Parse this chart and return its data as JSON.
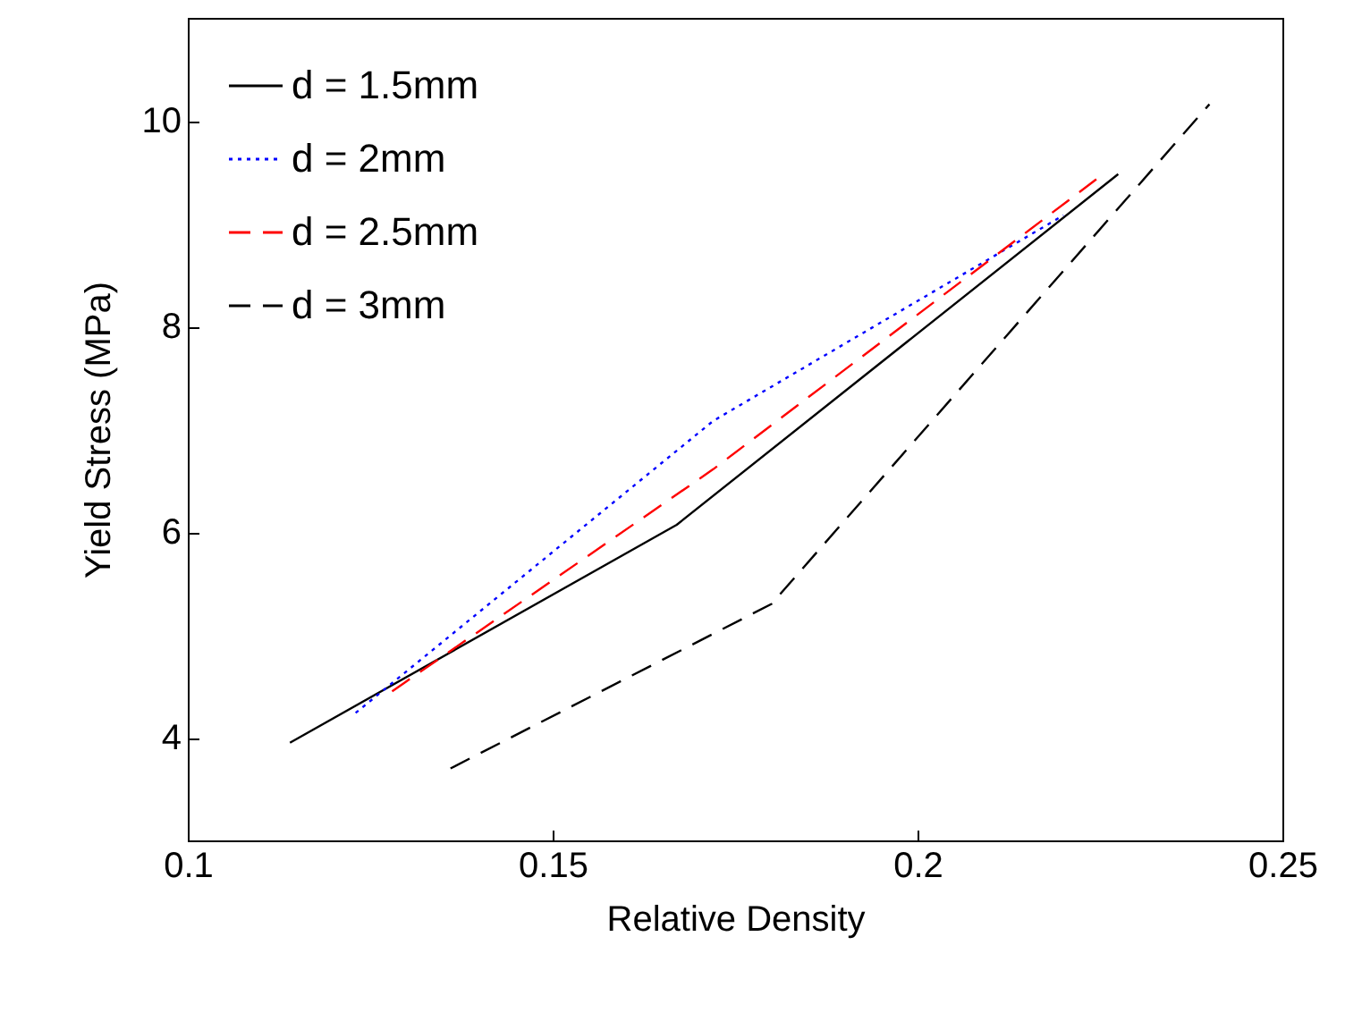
{
  "chart_data": {
    "type": "line",
    "xlabel": "Relative Density",
    "ylabel": "Yield Stress (MPa)",
    "xlim": [
      0.1,
      0.25
    ],
    "xticks": [
      0.1,
      0.15,
      0.2,
      0.25
    ],
    "ylim": [
      3,
      11
    ],
    "yticks": [
      4,
      6,
      8,
      10
    ],
    "grid": false,
    "legend": "top left",
    "marker": "none",
    "series": [
      {
        "name": "d = 1.5mm",
        "color": "#000000",
        "line_style": "solid",
        "x": [
          0.114,
          0.167,
          0.2275
        ],
        "values": [
          3.95,
          6.07,
          9.48
        ]
      },
      {
        "name": "d = 2mm",
        "color": "#0000ff",
        "line_style": "dotted",
        "x": [
          0.123,
          0.172,
          0.22
        ],
        "values": [
          4.24,
          7.08,
          9.08
        ]
      },
      {
        "name": "d = 2.5mm",
        "color": "#ff0000",
        "line_style": "dashed",
        "x": [
          0.128,
          0.172,
          0.2245
        ],
        "values": [
          4.45,
          6.61,
          9.43
        ]
      },
      {
        "name": "d = 3mm",
        "color": "#000000",
        "line_style": "dashed",
        "x": [
          0.136,
          0.18,
          0.24
        ],
        "values": [
          3.7,
          5.3,
          10.16
        ]
      }
    ]
  }
}
